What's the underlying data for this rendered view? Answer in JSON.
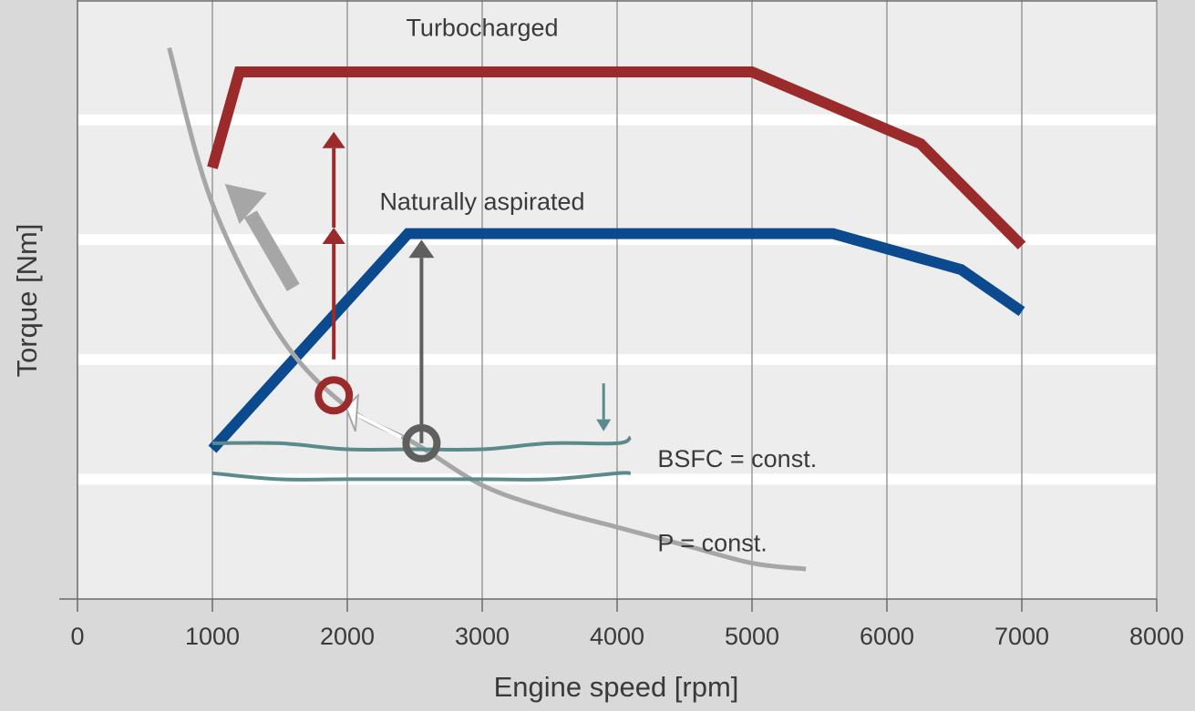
{
  "chart_data": {
    "type": "line",
    "title": "",
    "xlabel": "Engine speed [rpm]",
    "ylabel": "Torque [Nm]",
    "xlim": [
      0,
      8000
    ],
    "x_ticks": [
      "0",
      "1000",
      "2000",
      "3000",
      "4000",
      "5000",
      "6000",
      "7000",
      "8000"
    ],
    "y_ticks_shown": false,
    "grid": "vertical and horizontal",
    "series": [
      {
        "name": "Turbocharged",
        "color": "#9b2a2a",
        "x": [
          1000,
          1200,
          5000,
          6250,
          7000
        ],
        "y": [
          0.72,
          0.88,
          0.88,
          0.76,
          0.59
        ]
      },
      {
        "name": "Naturally aspirated",
        "color": "#0b4a8f",
        "x": [
          1000,
          2450,
          5600,
          6550,
          7000
        ],
        "y": [
          0.25,
          0.61,
          0.61,
          0.55,
          0.48
        ]
      },
      {
        "name": "P = const.",
        "color": "#a6a6a6",
        "x": [
          680,
          1000,
          1500,
          2000,
          2500,
          3000,
          3500,
          4000,
          4500,
          5000,
          5400
        ],
        "y": [
          0.92,
          0.66,
          0.44,
          0.32,
          0.26,
          0.19,
          0.15,
          0.12,
          0.09,
          0.06,
          0.05
        ]
      },
      {
        "name": "BSFC = const.",
        "color": "#5b8a8a",
        "x": [
          1000,
          1500,
          2000,
          2500,
          3000,
          3500,
          4000,
          4100
        ],
        "y": [
          0.26,
          0.26,
          0.25,
          0.25,
          0.25,
          0.26,
          0.26,
          0.27
        ]
      },
      {
        "name": "",
        "color": "#5b8a8a",
        "x": [
          1000,
          1500,
          2000,
          2500,
          3000,
          3500,
          4000,
          4100
        ],
        "y": [
          0.21,
          0.2,
          0.2,
          0.2,
          0.2,
          0.2,
          0.21,
          0.21
        ]
      }
    ],
    "annotations": [
      {
        "text": "Turbocharged",
        "x": 3000,
        "y": 0.94
      },
      {
        "text": "Naturally aspirated",
        "x": 3000,
        "y": 0.65
      },
      {
        "text": "BSFC = const.",
        "x": 4300,
        "y": 0.22
      },
      {
        "text": "P = const.",
        "x": 4300,
        "y": 0.08
      }
    ]
  }
}
